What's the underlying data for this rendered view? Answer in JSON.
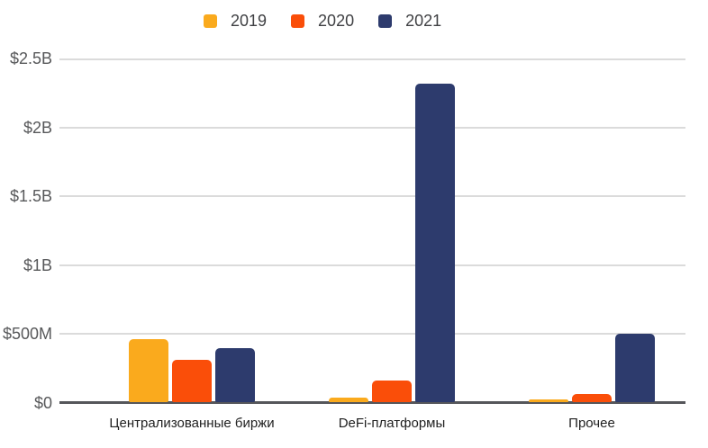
{
  "chart_data": {
    "type": "bar",
    "title": "",
    "categories": [
      "Централизованные биржи",
      "DeFi-платформы",
      "Прочее"
    ],
    "series": [
      {
        "name": "2019",
        "color": "#FAAA1D",
        "values_millions_usd": [
          460,
          30,
          20
        ]
      },
      {
        "name": "2020",
        "color": "#FA4E09",
        "values_millions_usd": [
          310,
          160,
          60
        ]
      },
      {
        "name": "2021",
        "color": "#2D3B6D",
        "values_millions_usd": [
          390,
          2320,
          500
        ]
      }
    ],
    "xlabel": "",
    "ylabel": "",
    "y_ticks": [
      {
        "value_millions_usd": 0,
        "label": "$0"
      },
      {
        "value_millions_usd": 500,
        "label": "$500M"
      },
      {
        "value_millions_usd": 1000,
        "label": "$1B"
      },
      {
        "value_millions_usd": 1500,
        "label": "$1.5B"
      },
      {
        "value_millions_usd": 2000,
        "label": "$2B"
      },
      {
        "value_millions_usd": 2500,
        "label": "$2.5B"
      }
    ],
    "ylim_millions_usd": [
      0,
      2500
    ],
    "grid": true,
    "legend_position": "top"
  },
  "style_colors": {
    "background": "#FFFFFF",
    "gridline": "#DBDBDB",
    "axis_line": "#55565A",
    "tick_label": "#57585A",
    "category_label": "#1F1F1F",
    "legend_label": "#3F4043"
  }
}
